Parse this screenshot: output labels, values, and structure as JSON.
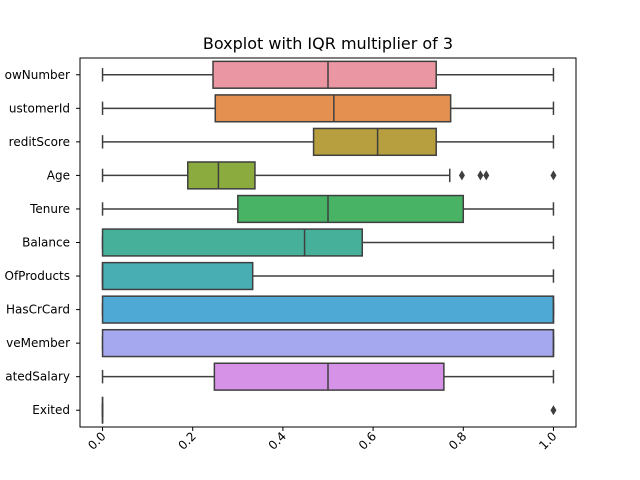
{
  "chart_data": {
    "type": "boxplot",
    "orientation": "horizontal",
    "title": "Boxplot with IQR multiplier of 3",
    "xlabel": "",
    "ylabel": "",
    "xlim": [
      -0.05,
      1.05
    ],
    "xticks": [
      0.0,
      0.2,
      0.4,
      0.6,
      0.8,
      1.0
    ],
    "xtick_labels": [
      "0.0",
      "0.2",
      "0.4",
      "0.6",
      "0.8",
      "1.0"
    ],
    "xtick_rotation": 45,
    "grid": false,
    "categories": [
      {
        "label": "RowNumber",
        "display": "owNumber",
        "color": "#ea96a3",
        "whisker_low": 0.0,
        "q1": 0.245,
        "median": 0.5,
        "q3": 0.74,
        "whisker_high": 1.0,
        "outliers": []
      },
      {
        "label": "CustomerId",
        "display": "ustomerId",
        "color": "#e39051",
        "whisker_low": 0.0,
        "q1": 0.25,
        "median": 0.513,
        "q3": 0.772,
        "whisker_high": 1.0,
        "outliers": []
      },
      {
        "label": "CreditScore",
        "display": "reditScore",
        "color": "#b79e3e",
        "whisker_low": 0.0,
        "q1": 0.468,
        "median": 0.61,
        "q3": 0.74,
        "whisker_high": 1.0,
        "outliers": []
      },
      {
        "label": "Age",
        "display": "Age",
        "color": "#8bab3e",
        "whisker_low": 0.0,
        "q1": 0.189,
        "median": 0.257,
        "q3": 0.338,
        "whisker_high": 0.77,
        "outliers": [
          0.797,
          0.838,
          0.851,
          1.0
        ]
      },
      {
        "label": "Tenure",
        "display": "Tenure",
        "color": "#48b365",
        "whisker_low": 0.0,
        "q1": 0.3,
        "median": 0.5,
        "q3": 0.8,
        "whisker_high": 1.0,
        "outliers": []
      },
      {
        "label": "Balance",
        "display": "Balance",
        "color": "#47b09b",
        "whisker_low": 0.0,
        "q1": 0.0,
        "median": 0.448,
        "q3": 0.576,
        "whisker_high": 1.0,
        "outliers": []
      },
      {
        "label": "NumOfProducts",
        "display": "OfProducts",
        "color": "#49aeb4",
        "whisker_low": 0.0,
        "q1": 0.0,
        "median": 0.0,
        "q3": 0.333,
        "whisker_high": 1.0,
        "outliers": []
      },
      {
        "label": "HasCrCard",
        "display": "HasCrCard",
        "color": "#4eaad4",
        "whisker_low": 0.0,
        "q1": 0.0,
        "median": 1.0,
        "q3": 1.0,
        "whisker_high": 1.0,
        "outliers": []
      },
      {
        "label": "IsActiveMember",
        "display": "veMember",
        "color": "#a5a8ef",
        "whisker_low": 0.0,
        "q1": 0.0,
        "median": 1.0,
        "q3": 1.0,
        "whisker_high": 1.0,
        "outliers": []
      },
      {
        "label": "EstimatedSalary",
        "display": "atedSalary",
        "color": "#d692e7",
        "whisker_low": 0.0,
        "q1": 0.248,
        "median": 0.5,
        "q3": 0.757,
        "whisker_high": 1.0,
        "outliers": []
      },
      {
        "label": "Exited",
        "display": "Exited",
        "color": "#ea96a3",
        "whisker_low": 0.0,
        "q1": 0.0,
        "median": 0.0,
        "q3": 0.0,
        "whisker_high": 0.0,
        "outliers": [
          1.0
        ]
      }
    ]
  }
}
